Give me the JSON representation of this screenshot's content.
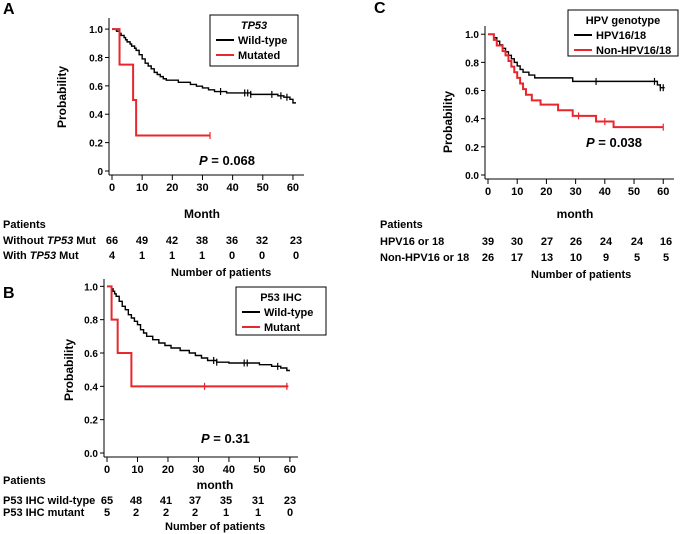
{
  "colors": {
    "black": "#000000",
    "red": "#e8262b"
  },
  "chart_data": [
    {
      "type": "line",
      "panel_letter": "A",
      "ylabel": "Probability",
      "xlabel": "Month",
      "xlim": [
        0,
        63
      ],
      "ylim": [
        0,
        1.05
      ],
      "xticks": [
        0,
        10,
        20,
        30,
        40,
        50,
        60
      ],
      "yticks": [
        0,
        0.2,
        0.4,
        0.6,
        0.8,
        1.0
      ],
      "ytick_labels": [
        "0",
        "0.2",
        "0.4",
        "0.6",
        "0.8",
        "1.0"
      ],
      "legend_title": "TP53",
      "legend_position": "top-right",
      "pvalue_label": "P",
      "pvalue_text": " = 0.068",
      "series": [
        {
          "name": "Wild-type",
          "color": "#000000",
          "steps": [
            [
              0,
              1.0
            ],
            [
              1.5,
              0.985
            ],
            [
              2.5,
              0.97
            ],
            [
              3,
              0.955
            ],
            [
              4,
              0.94
            ],
            [
              4.5,
              0.925
            ],
            [
              5,
              0.91
            ],
            [
              6,
              0.895
            ],
            [
              6.5,
              0.88
            ],
            [
              7.5,
              0.865
            ],
            [
              8,
              0.85
            ],
            [
              9,
              0.82
            ],
            [
              10,
              0.79
            ],
            [
              11,
              0.76
            ],
            [
              12,
              0.74
            ],
            [
              13,
              0.72
            ],
            [
              14,
              0.695
            ],
            [
              15,
              0.68
            ],
            [
              16,
              0.665
            ],
            [
              17,
              0.65
            ],
            [
              18,
              0.64
            ],
            [
              22,
              0.625
            ],
            [
              26,
              0.61
            ],
            [
              28,
              0.598
            ],
            [
              30,
              0.585
            ],
            [
              32,
              0.572
            ],
            [
              34,
              0.56
            ],
            [
              38,
              0.55
            ],
            [
              46,
              0.54
            ],
            [
              55,
              0.53
            ],
            [
              57,
              0.52
            ],
            [
              59,
              0.505
            ],
            [
              60,
              0.48
            ]
          ],
          "end": 61,
          "censor": [
            36,
            44,
            45,
            46,
            53,
            56,
            58
          ]
        },
        {
          "name": "Mutated",
          "color": "#e8262b",
          "steps": [
            [
              0,
              1.0
            ],
            [
              2.5,
              0.75
            ],
            [
              7,
              0.5
            ],
            [
              8,
              0.25
            ]
          ],
          "end": 32.5,
          "censor": [
            32.5
          ]
        }
      ],
      "risk_table": {
        "header": "Patients",
        "footer": "Number of patients",
        "rows": [
          {
            "prefix": "Without ",
            "italic": "TP53",
            "suffix": " Mut",
            "counts": [
              "66",
              "49",
              "42",
              "38",
              "36",
              "32",
              "23"
            ]
          },
          {
            "prefix": "With ",
            "italic": "TP53",
            "suffix": " Mut",
            "counts": [
              "4",
              "1",
              "1",
              "1",
              "0",
              "0",
              "0"
            ]
          }
        ]
      }
    },
    {
      "type": "line",
      "panel_letter": "B",
      "ylabel": "Probability",
      "xlabel": "month",
      "xlim": [
        0,
        62
      ],
      "ylim": [
        0,
        1.02
      ],
      "xticks": [
        0,
        10,
        20,
        30,
        40,
        50,
        60
      ],
      "yticks": [
        0,
        0.2,
        0.4,
        0.6,
        0.8,
        1.0
      ],
      "ytick_labels": [
        "0.0",
        "0.2",
        "0.4",
        "0.6",
        "0.8",
        "1.0"
      ],
      "legend_title": "P53 IHC",
      "legend_position": "top-right",
      "pvalue_label": "P",
      "pvalue_text": " = 0.31",
      "series": [
        {
          "name": "Wild-type",
          "color": "#000000",
          "steps": [
            [
              0,
              1.0
            ],
            [
              1.5,
              0.985
            ],
            [
              2,
              0.97
            ],
            [
              2.5,
              0.955
            ],
            [
              3,
              0.94
            ],
            [
              4,
              0.91
            ],
            [
              5,
              0.88
            ],
            [
              6,
              0.86
            ],
            [
              7,
              0.83
            ],
            [
              8,
              0.81
            ],
            [
              9,
              0.79
            ],
            [
              10,
              0.77
            ],
            [
              11,
              0.74
            ],
            [
              12,
              0.72
            ],
            [
              13,
              0.7
            ],
            [
              15,
              0.68
            ],
            [
              17,
              0.66
            ],
            [
              19,
              0.645
            ],
            [
              21,
              0.63
            ],
            [
              24,
              0.615
            ],
            [
              27,
              0.6
            ],
            [
              29,
              0.585
            ],
            [
              31,
              0.57
            ],
            [
              33,
              0.555
            ],
            [
              36,
              0.545
            ],
            [
              40,
              0.54
            ],
            [
              50,
              0.53
            ],
            [
              54,
              0.52
            ],
            [
              57,
              0.51
            ],
            [
              59,
              0.495
            ]
          ],
          "end": 60,
          "censor": [
            35,
            36,
            45,
            46,
            56
          ]
        },
        {
          "name": "Mutant",
          "color": "#e8262b",
          "steps": [
            [
              0,
              1.0
            ],
            [
              1.5,
              0.8
            ],
            [
              3.5,
              0.6
            ],
            [
              8,
              0.4
            ]
          ],
          "end": 59.5,
          "censor": [
            32,
            59
          ]
        }
      ],
      "risk_table": {
        "header": "Patients",
        "footer": "Number of patients",
        "rows": [
          {
            "prefix": "P53 IHC wild-type",
            "italic": "",
            "suffix": "",
            "counts": [
              "65",
              "48",
              "41",
              "37",
              "35",
              "31",
              "23"
            ]
          },
          {
            "prefix": "P53 IHC mutant",
            "italic": "",
            "suffix": "",
            "counts": [
              "5",
              "2",
              "2",
              "2",
              "1",
              "1",
              "0"
            ]
          }
        ]
      }
    },
    {
      "type": "line",
      "panel_letter": "C",
      "ylabel": "Probability",
      "xlabel": "month",
      "xlim": [
        0,
        63
      ],
      "ylim": [
        0,
        1.03
      ],
      "xticks": [
        0,
        10,
        20,
        30,
        40,
        50,
        60
      ],
      "yticks": [
        0,
        0.2,
        0.4,
        0.6,
        0.8,
        1.0
      ],
      "ytick_labels": [
        "0.0",
        "0.2",
        "0.4",
        "0.6",
        "0.8",
        "1.0"
      ],
      "legend_title": "HPV genotype",
      "legend_position": "top-right",
      "pvalue_label": "P",
      "pvalue_text": " = 0.038",
      "series": [
        {
          "name": "HPV16/18",
          "color": "#000000",
          "steps": [
            [
              0,
              1.0
            ],
            [
              2,
              0.975
            ],
            [
              3,
              0.95
            ],
            [
              4,
              0.925
            ],
            [
              5,
              0.9
            ],
            [
              6,
              0.875
            ],
            [
              7,
              0.85
            ],
            [
              8,
              0.825
            ],
            [
              9,
              0.8
            ],
            [
              10,
              0.775
            ],
            [
              11,
              0.75
            ],
            [
              12,
              0.73
            ],
            [
              14,
              0.71
            ],
            [
              16,
              0.69
            ],
            [
              20,
              0.69
            ],
            [
              29,
              0.665
            ],
            [
              30,
              0.665
            ],
            [
              58,
              0.64
            ],
            [
              59,
              0.62
            ]
          ],
          "end": 60.5,
          "censor": [
            37,
            57,
            59,
            60
          ]
        },
        {
          "name": "Non-HPV16/18",
          "color": "#e8262b",
          "steps": [
            [
              0,
              1.0
            ],
            [
              2,
              0.96
            ],
            [
              3,
              0.92
            ],
            [
              5,
              0.88
            ],
            [
              6,
              0.85
            ],
            [
              7,
              0.81
            ],
            [
              8,
              0.77
            ],
            [
              9,
              0.73
            ],
            [
              10,
              0.69
            ],
            [
              11,
              0.65
            ],
            [
              12,
              0.61
            ],
            [
              13,
              0.57
            ],
            [
              15,
              0.53
            ],
            [
              18,
              0.5
            ],
            [
              24,
              0.46
            ],
            [
              29,
              0.42
            ],
            [
              37,
              0.38
            ],
            [
              43,
              0.34
            ]
          ],
          "end": 60,
          "censor": [
            31,
            40,
            60
          ]
        }
      ],
      "risk_table": {
        "header": "Patients",
        "footer": "Number of patients",
        "rows": [
          {
            "prefix": "HPV16 or 18",
            "italic": "",
            "suffix": "",
            "counts": [
              "39",
              "30",
              "27",
              "26",
              "24",
              "24",
              "16"
            ]
          },
          {
            "prefix": "Non-HPV16 or 18",
            "italic": "",
            "suffix": "",
            "counts": [
              "26",
              "17",
              "13",
              "10",
              "9",
              "5",
              "5"
            ]
          }
        ]
      }
    }
  ]
}
